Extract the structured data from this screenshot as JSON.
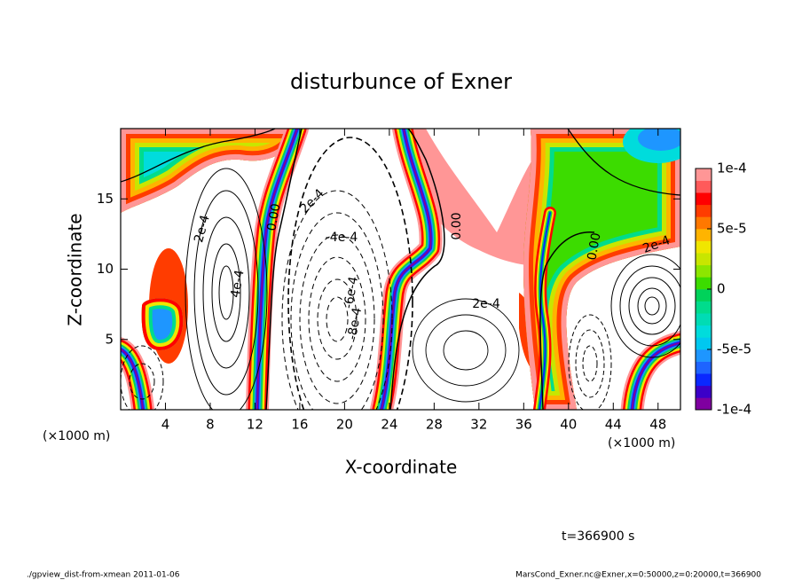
{
  "chart_data": {
    "type": "contour",
    "title": "disturbunce of Exner",
    "x_label": "X-coordinate",
    "y_label": "Z-coordinate",
    "x_unit": "(×1000 m)",
    "xlim": [
      0,
      50
    ],
    "ylim": [
      0,
      20
    ],
    "xticks": [
      4,
      8,
      12,
      16,
      20,
      24,
      28,
      32,
      36,
      40,
      44,
      48
    ],
    "yticks": [
      5,
      10,
      15
    ],
    "colorbar": {
      "lim": [
        -0.0001,
        0.0001
      ],
      "ticks": [
        {
          "value": -0.0001,
          "label": "-1e-4"
        },
        {
          "value": -5e-05,
          "label": "-5e-5"
        },
        {
          "value": 0,
          "label": "0"
        },
        {
          "value": 5e-05,
          "label": "5e-5"
        },
        {
          "value": 0.0001,
          "label": "1e-4"
        }
      ],
      "colors": [
        "#7f00a0",
        "#3c00c8",
        "#0a28ff",
        "#1e64ff",
        "#1e96ff",
        "#00c8f0",
        "#00dcdc",
        "#00dcb4",
        "#00dc8c",
        "#00d25a",
        "#3cdc00",
        "#8ce600",
        "#c8e600",
        "#f0e600",
        "#ffb400",
        "#ff7800",
        "#ff3c00",
        "#ff0000",
        "#ff5a5a",
        "#ff9696"
      ]
    },
    "contour_labels": [
      "2e-4",
      "4e-4",
      "0.00",
      "2e-4",
      "-4e-4",
      "-6e-4",
      "-8e-4",
      "0.00",
      "2e-4",
      "0.00",
      "2e-4"
    ],
    "time_label": "t=366900 s"
  },
  "footer": {
    "left": "./gpview_dist-from-xmean  2011-01-06",
    "right": "MarsCond_Exner.nc@Exner,x=0:50000,z=0:20000,t=366900"
  }
}
